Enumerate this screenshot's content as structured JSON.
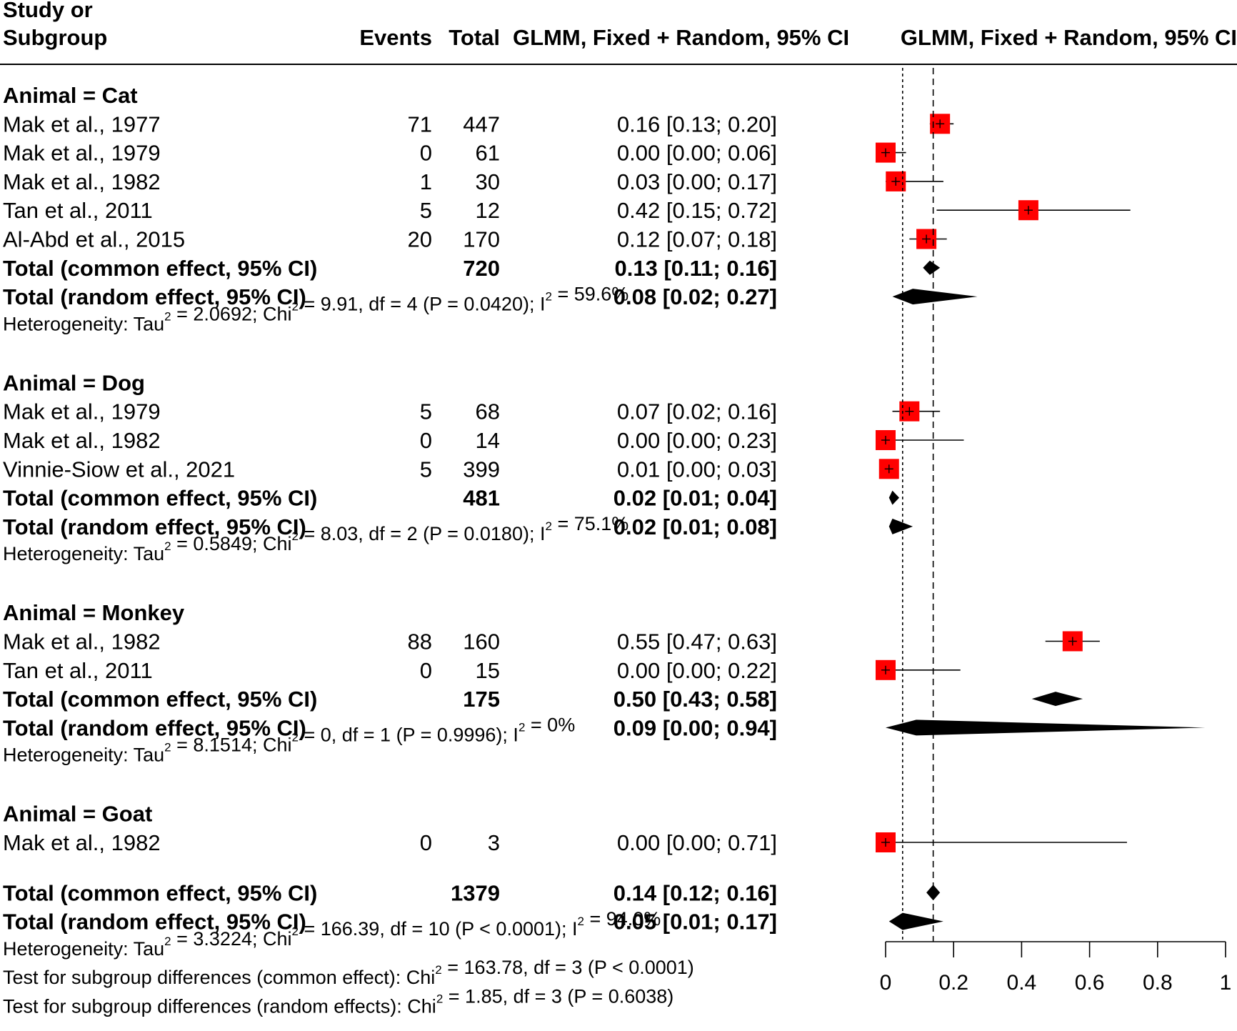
{
  "header": {
    "study_line1": "Study or",
    "study_line2": "Subgroup",
    "events": "Events",
    "total": "Total",
    "estimate": "GLMM, Fixed + Random, 95% CI",
    "plot": "GLMM, Fixed + Random, 95% CI"
  },
  "chart_data": {
    "type": "forest",
    "measure": "proportion",
    "xlim": [
      0,
      1
    ],
    "ticks": [
      0,
      0.2,
      0.4,
      0.6,
      0.8,
      1
    ],
    "tick_labels": [
      "0",
      "0.2",
      "0.4",
      "0.6",
      "0.8",
      "1"
    ],
    "reference_lines": {
      "common": 0.14,
      "random": 0.05
    },
    "colors": {
      "square": "#ff0000",
      "diamond": "#000000",
      "lines": "#000000"
    },
    "subgroups": [
      {
        "label": "Animal = Cat",
        "studies": [
          {
            "study": "Mak et al., 1977",
            "events": "71",
            "total": "447",
            "est": 0.16,
            "lo": 0.13,
            "hi": 0.2,
            "text": "0.16 [0.13; 0.20]"
          },
          {
            "study": "Mak et al., 1979",
            "events": "0",
            "total": "61",
            "est": 0.0,
            "lo": 0.0,
            "hi": 0.06,
            "text": "0.00 [0.00; 0.06]"
          },
          {
            "study": "Mak et al., 1982",
            "events": "1",
            "total": "30",
            "est": 0.03,
            "lo": 0.0,
            "hi": 0.17,
            "text": "0.03 [0.00; 0.17]"
          },
          {
            "study": "Tan et al., 2011",
            "events": "5",
            "total": "12",
            "est": 0.42,
            "lo": 0.15,
            "hi": 0.72,
            "text": "0.42 [0.15; 0.72]"
          },
          {
            "study": "Al-Abd et al., 2015",
            "events": "20",
            "total": "170",
            "est": 0.12,
            "lo": 0.07,
            "hi": 0.18,
            "text": "0.12 [0.07; 0.18]"
          }
        ],
        "common": {
          "label": "Total (common effect, 95% CI)",
          "total": "720",
          "est": 0.13,
          "lo": 0.11,
          "hi": 0.16,
          "text": "0.13 [0.11; 0.16]"
        },
        "random": {
          "label": "Total (random effect, 95% CI)",
          "est": 0.08,
          "lo": 0.02,
          "hi": 0.27,
          "text": "0.08 [0.02; 0.27]"
        },
        "heterogeneity": {
          "prefix": "Heterogeneity: Tau",
          "tau2": " = 2.0692; Chi",
          "chi2": " = 9.91, df = 4 (P = 0.0420); I",
          "i2": " = 59.6%"
        }
      },
      {
        "label": "Animal = Dog",
        "studies": [
          {
            "study": "Mak et al., 1979",
            "events": "5",
            "total": "68",
            "est": 0.07,
            "lo": 0.02,
            "hi": 0.16,
            "text": "0.07 [0.02; 0.16]"
          },
          {
            "study": "Mak et al., 1982",
            "events": "0",
            "total": "14",
            "est": 0.0,
            "lo": 0.0,
            "hi": 0.23,
            "text": "0.00 [0.00; 0.23]"
          },
          {
            "study": "Vinnie-Siow et al., 2021",
            "events": "5",
            "total": "399",
            "est": 0.01,
            "lo": 0.0,
            "hi": 0.03,
            "text": "0.01 [0.00; 0.03]"
          }
        ],
        "common": {
          "label": "Total (common effect, 95% CI)",
          "total": "481",
          "est": 0.02,
          "lo": 0.01,
          "hi": 0.04,
          "text": "0.02 [0.01; 0.04]"
        },
        "random": {
          "label": "Total (random effect, 95% CI)",
          "est": 0.02,
          "lo": 0.01,
          "hi": 0.08,
          "text": "0.02 [0.01; 0.08]"
        },
        "heterogeneity": {
          "prefix": "Heterogeneity: Tau",
          "tau2": " = 0.5849; Chi",
          "chi2": " = 8.03, df = 2 (P = 0.0180); I",
          "i2": " = 75.1%"
        }
      },
      {
        "label": "Animal = Monkey",
        "studies": [
          {
            "study": "Mak et al., 1982",
            "events": "88",
            "total": "160",
            "est": 0.55,
            "lo": 0.47,
            "hi": 0.63,
            "text": "0.55 [0.47; 0.63]"
          },
          {
            "study": "Tan et al., 2011",
            "events": "0",
            "total": "15",
            "est": 0.0,
            "lo": 0.0,
            "hi": 0.22,
            "text": "0.00 [0.00; 0.22]"
          }
        ],
        "common": {
          "label": "Total (common effect, 95% CI)",
          "total": "175",
          "est": 0.5,
          "lo": 0.43,
          "hi": 0.58,
          "text": "0.50 [0.43; 0.58]"
        },
        "random": {
          "label": "Total (random effect, 95% CI)",
          "est": 0.09,
          "lo": 0.0,
          "hi": 0.94,
          "text": "0.09 [0.00; 0.94]"
        },
        "heterogeneity": {
          "prefix": "Heterogeneity: Tau",
          "tau2": " = 8.1514; Chi",
          "chi2": " = 0, df = 1 (P = 0.9996); I",
          "i2": " = 0%"
        }
      },
      {
        "label": "Animal = Goat",
        "studies": [
          {
            "study": "Mak et al., 1982",
            "events": "0",
            "total": "3",
            "est": 0.0,
            "lo": 0.0,
            "hi": 0.71,
            "text": "0.00 [0.00; 0.71]"
          }
        ]
      }
    ],
    "overall": {
      "common": {
        "label": "Total (common effect, 95% CI)",
        "total": "1379",
        "est": 0.14,
        "lo": 0.12,
        "hi": 0.16,
        "text": "0.14 [0.12; 0.16]"
      },
      "random": {
        "label": "Total (random effect, 95% CI)",
        "est": 0.05,
        "lo": 0.01,
        "hi": 0.17,
        "text": "0.05 [0.01; 0.17]"
      },
      "heterogeneity": {
        "prefix": "Heterogeneity: Tau",
        "tau2": " = 3.3224; Chi",
        "chi2": " = 166.39, df = 10 (P < 0.0001); I",
        "i2": " = 94.0%"
      },
      "test_common": {
        "prefix": "Test for subgroup differences (common effect): Chi",
        "chi2": " = 163.78, df = 3 (P < 0.0001)"
      },
      "test_random": {
        "prefix": "Test for subgroup differences (random effects): Chi",
        "chi2": " = 1.85, df = 3 (P = 0.6038)"
      }
    }
  }
}
